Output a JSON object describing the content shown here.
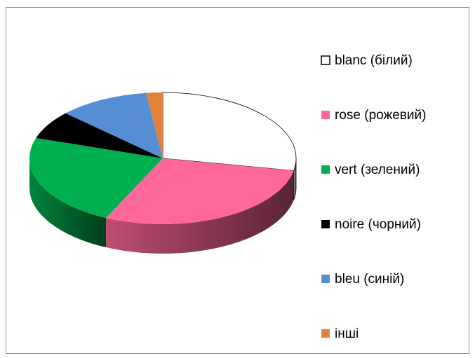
{
  "chart_data": {
    "type": "pie",
    "three_d": true,
    "categories": [
      "blanc (білий)",
      "rose (рожевий)",
      "vert (зелений)",
      "noire (чорний)",
      "bleu (синій)",
      "інші"
    ],
    "values": [
      28,
      29,
      23,
      7,
      11,
      2
    ],
    "colors": [
      "#ffffff",
      "#ff6699",
      "#00b050",
      "#000000",
      "#558ed5",
      "#e0823a"
    ],
    "legend": "right"
  }
}
